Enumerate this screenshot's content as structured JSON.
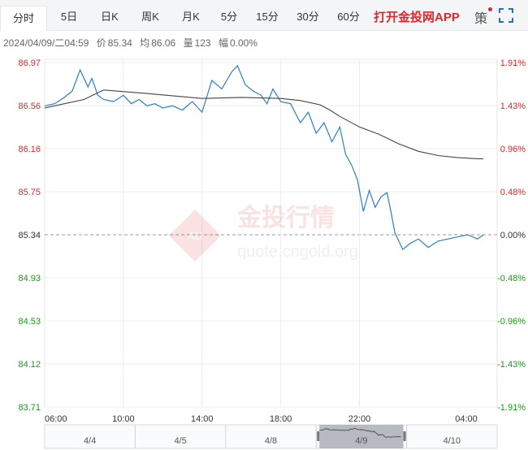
{
  "tabs": [
    {
      "label": "分时",
      "active": true
    },
    {
      "label": "5日",
      "active": false
    },
    {
      "label": "日K",
      "active": false
    },
    {
      "label": "周K",
      "active": false
    },
    {
      "label": "月K",
      "active": false
    },
    {
      "label": "5分",
      "active": false
    },
    {
      "label": "15分",
      "active": false
    },
    {
      "label": "30分",
      "active": false
    },
    {
      "label": "60分",
      "active": false
    }
  ],
  "app_link": "打开金投网APP",
  "ce_label": "策",
  "info": {
    "datetime": "2024/04/09/二04:59",
    "price_label": "价",
    "price": "85.34",
    "avg_label": "均",
    "avg": "86.06",
    "vol_label": "量",
    "vol": "123",
    "range_label": "幅",
    "range": "0.00%"
  },
  "watermark": {
    "name": "金投行情",
    "url": "quote.cngold.org",
    "badge": "AU"
  },
  "colors": {
    "up": "#e0262a",
    "down": "#1a9c1a",
    "price_line": "#2c7fc1",
    "avg_line": "#444444",
    "neutral": "#333333"
  },
  "chart_data": {
    "type": "line",
    "y_labels": [
      "86.97",
      "86.56",
      "86.16",
      "85.75",
      "85.34",
      "84.93",
      "84.53",
      "84.12",
      "83.71"
    ],
    "pct_labels": [
      "1.91%",
      "1.43%",
      "0.96%",
      "0.48%",
      "0.00%",
      "-0.48%",
      "-0.96%",
      "-1.43%",
      "-1.91%"
    ],
    "ylim": [
      83.71,
      86.97
    ],
    "base_price": 85.34,
    "x_labels": [
      "06:00",
      "10:00",
      "14:00",
      "18:00",
      "22:00",
      "04:00"
    ],
    "x_label_hours": [
      0,
      4,
      8,
      12,
      16,
      22
    ],
    "x_range_hours": [
      0,
      23
    ],
    "series": [
      {
        "role": "price",
        "x": [
          0.0,
          0.5,
          1.0,
          1.4,
          1.8,
          2.2,
          2.4,
          2.7,
          3.0,
          3.5,
          4.0,
          4.4,
          4.8,
          5.2,
          5.6,
          6.0,
          6.5,
          7.0,
          7.5,
          8.0,
          8.5,
          9.0,
          9.5,
          9.8,
          10.2,
          10.6,
          11.0,
          11.3,
          11.6,
          12.0,
          12.5,
          13.0,
          13.4,
          13.8,
          14.2,
          14.6,
          15.0,
          15.3,
          15.6,
          15.9,
          16.2,
          16.5,
          16.8,
          17.1,
          17.4,
          17.6,
          17.8,
          18.2,
          18.6,
          19.0,
          19.5,
          20.0,
          20.5,
          21.0,
          21.5,
          22.0,
          22.3
        ],
        "y": [
          86.56,
          86.58,
          86.64,
          86.7,
          86.9,
          86.74,
          86.82,
          86.66,
          86.62,
          86.6,
          86.66,
          86.58,
          86.62,
          86.56,
          86.58,
          86.54,
          86.56,
          86.52,
          86.6,
          86.5,
          86.8,
          86.72,
          86.88,
          86.94,
          86.76,
          86.7,
          86.66,
          86.58,
          86.72,
          86.6,
          86.58,
          86.4,
          86.5,
          86.3,
          86.4,
          86.22,
          86.36,
          86.1,
          86.0,
          85.86,
          85.56,
          85.76,
          85.6,
          85.7,
          85.74,
          85.56,
          85.36,
          85.2,
          85.26,
          85.3,
          85.22,
          85.28,
          85.3,
          85.32,
          85.34,
          85.3,
          85.34
        ]
      },
      {
        "role": "average",
        "x": [
          0.0,
          2.0,
          3.0,
          5.0,
          8.0,
          10.0,
          12.0,
          13.0,
          14.0,
          14.5,
          15.0,
          16.0,
          17.0,
          18.0,
          19.0,
          20.0,
          21.0,
          22.0,
          22.3
        ],
        "y": [
          86.54,
          86.62,
          86.71,
          86.68,
          86.63,
          86.64,
          86.63,
          86.61,
          86.57,
          86.52,
          86.46,
          86.36,
          86.29,
          86.2,
          86.13,
          86.09,
          86.07,
          86.06,
          86.06
        ]
      }
    ],
    "overview": {
      "date_labels": [
        "4/4",
        "4/5",
        "4/8",
        "4/9",
        "4/10"
      ],
      "selected": "4/9"
    },
    "grid": true
  }
}
